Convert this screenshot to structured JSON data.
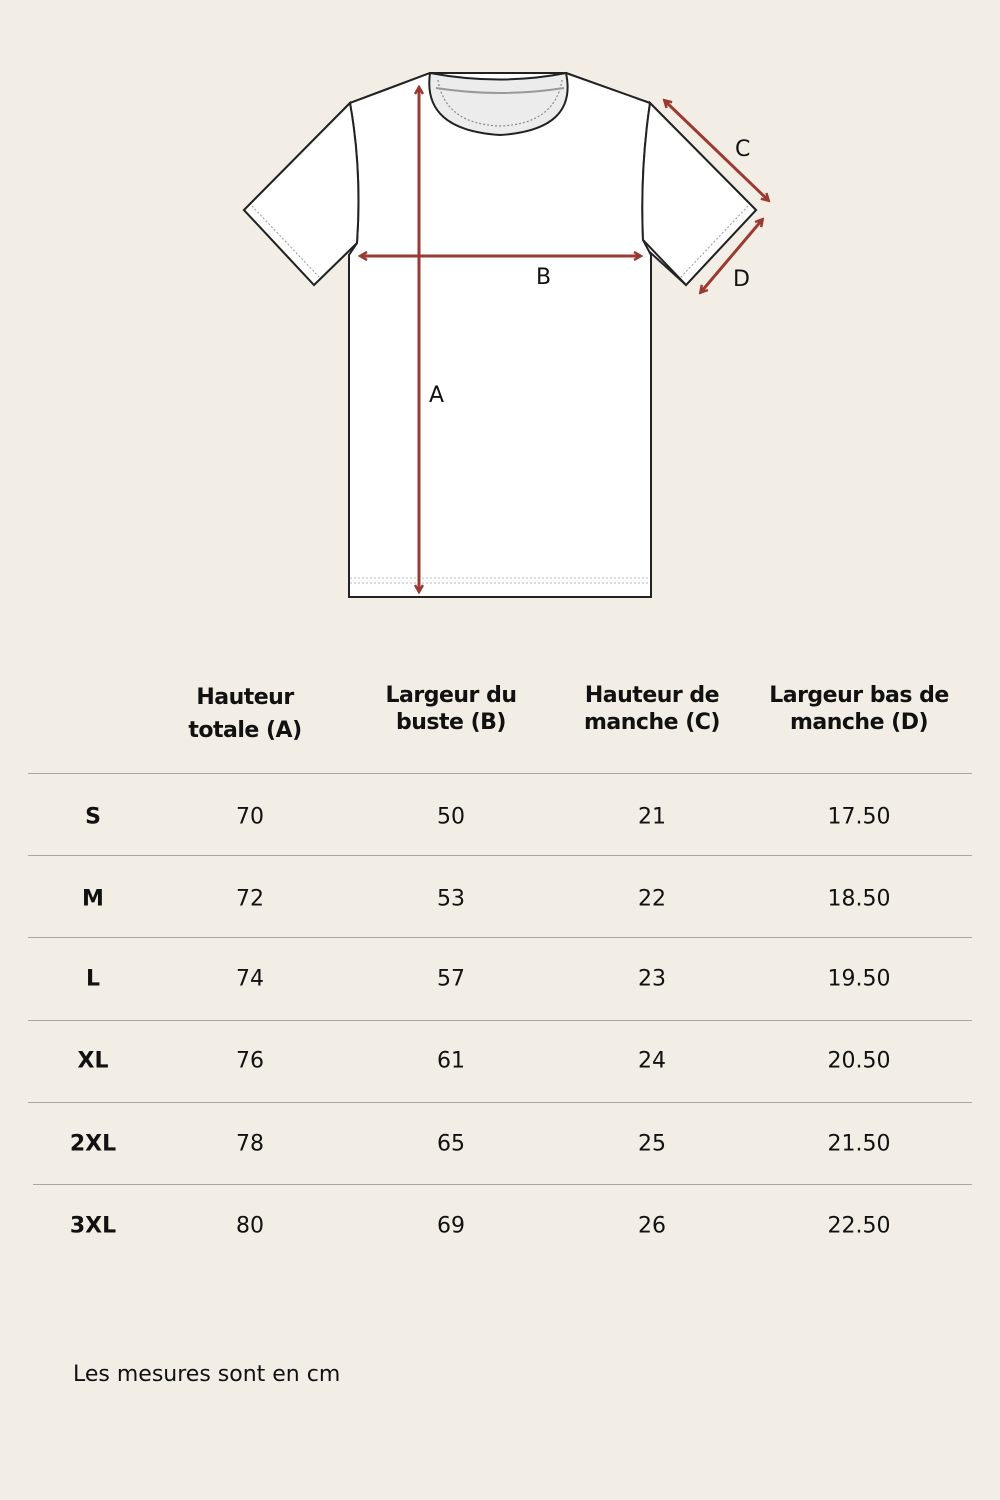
{
  "diagram": {
    "labels": {
      "a": "A",
      "b": "B",
      "c": "C",
      "d": "D"
    },
    "arrow_color": "#9b3a32"
  },
  "table": {
    "headers": [
      "",
      "Hauteur totale (A)",
      "Largeur du buste (B)",
      "Hauteur de manche (C)",
      "Largeur bas de manche (D)"
    ],
    "header_lines": [
      [
        "Hauteur",
        "totale (A)"
      ],
      [
        "Largeur du",
        "buste (B)"
      ],
      [
        "Hauteur de",
        "manche (C)"
      ],
      [
        "Largeur bas de",
        "manche (D)"
      ]
    ],
    "rows": [
      [
        "S",
        "70",
        "50",
        "21",
        "17.50"
      ],
      [
        "M",
        "72",
        "53",
        "22",
        "18.50"
      ],
      [
        "L",
        "74",
        "57",
        "23",
        "19.50"
      ],
      [
        "XL",
        "76",
        "61",
        "24",
        "20.50"
      ],
      [
        "2XL",
        "78",
        "65",
        "25",
        "21.50"
      ],
      [
        "3XL",
        "80",
        "69",
        "26",
        "22.50"
      ]
    ]
  },
  "note": "Les mesures sont en cm"
}
